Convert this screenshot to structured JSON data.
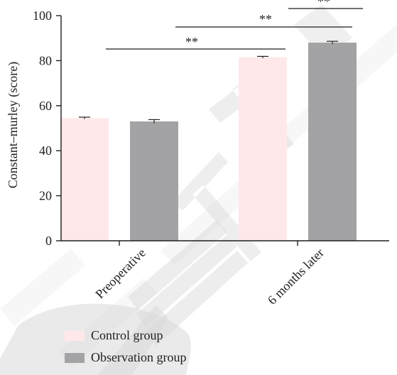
{
  "chart_data": {
    "type": "bar",
    "categories": [
      "Preoperative",
      "6 months later"
    ],
    "series": [
      {
        "name": "Control group",
        "color": "#ffe8ea",
        "values": [
          54.5,
          81.5
        ],
        "errors": [
          0.4,
          0.4
        ]
      },
      {
        "name": "Observation group",
        "color": "#a3a3a5",
        "values": [
          53.0,
          88.0
        ],
        "errors": [
          0.8,
          0.6
        ]
      }
    ],
    "xlabel": "",
    "ylabel": "Constant–murley (score)",
    "ylim": [
      0,
      100
    ],
    "yticks": [
      0,
      20,
      40,
      60,
      80,
      100
    ],
    "legend_position": "bottom-left",
    "grid": false,
    "significance": [
      {
        "label": "**"
      },
      {
        "label": "**"
      },
      {
        "label": "**"
      }
    ],
    "watermark": {
      "text": "RETRACTED",
      "color": "#d9d9d9"
    }
  }
}
